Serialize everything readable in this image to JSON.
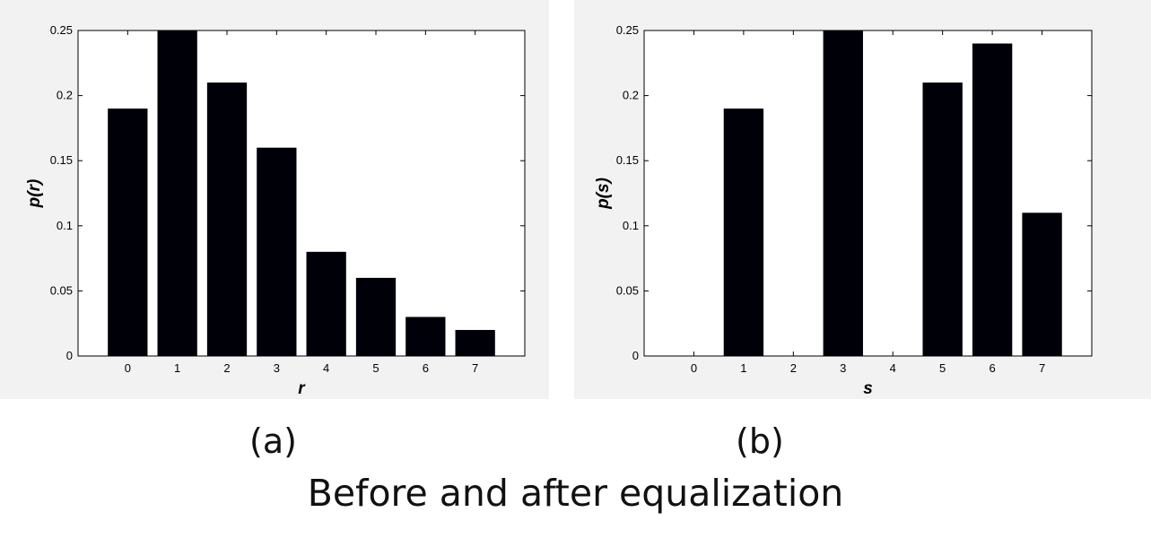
{
  "chart_data": [
    {
      "type": "bar",
      "categories": [
        "0",
        "1",
        "2",
        "3",
        "4",
        "5",
        "6",
        "7"
      ],
      "values": [
        0.19,
        0.25,
        0.21,
        0.16,
        0.08,
        0.06,
        0.03,
        0.02
      ],
      "xlabel": "r",
      "ylabel": "p(r)",
      "ylim": [
        0,
        0.25
      ],
      "xlim": [
        -1,
        8
      ],
      "yticks": [
        "0",
        "0.05",
        "0.1",
        "0.15",
        "0.2",
        "0.25"
      ],
      "xticks": [
        "0",
        "1",
        "2",
        "3",
        "4",
        "5",
        "6",
        "7"
      ],
      "bar_color": "#000008",
      "grid": false
    },
    {
      "type": "bar",
      "categories": [
        "0",
        "1",
        "2",
        "3",
        "4",
        "5",
        "6",
        "7"
      ],
      "values": [
        0,
        0.19,
        0,
        0.25,
        0,
        0.21,
        0.24,
        0.11
      ],
      "xlabel": "s",
      "ylabel": "p(s)",
      "ylim": [
        0,
        0.25
      ],
      "xlim": [
        -1,
        8
      ],
      "yticks": [
        "0",
        "0.05",
        "0.1",
        "0.15",
        "0.2",
        "0.25"
      ],
      "xticks": [
        "0",
        "1",
        "2",
        "3",
        "4",
        "5",
        "6",
        "7"
      ],
      "bar_color": "#000008",
      "grid": false
    }
  ],
  "captions": {
    "a": "(a)",
    "b": "(b)",
    "footer": "Before and after equalization"
  }
}
